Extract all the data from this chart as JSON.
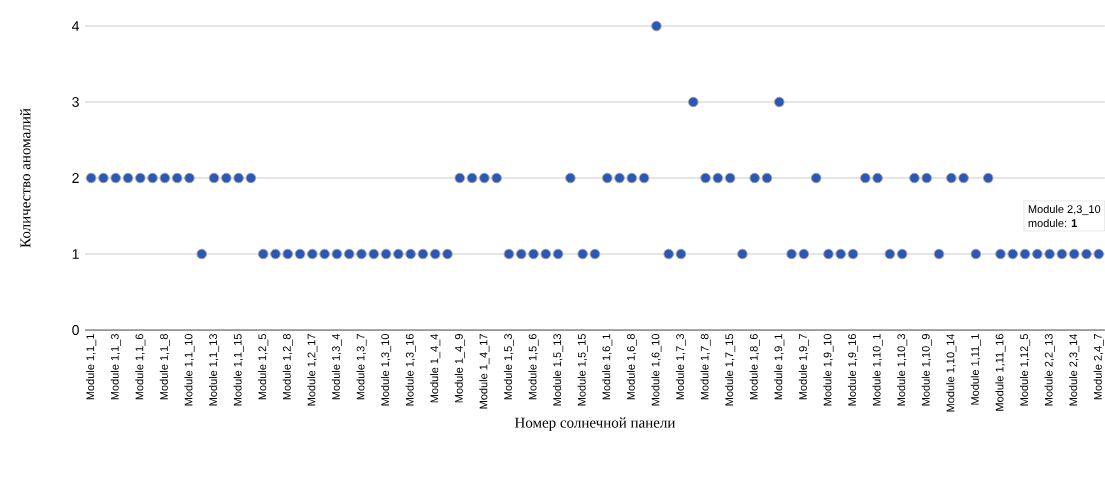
{
  "chart_data": {
    "type": "scatter",
    "xlabel": "Номер солнечной панели",
    "ylabel": "Количество аномалий",
    "categories": [
      "Module 1,1_1",
      null,
      "Module 1,1_3",
      null,
      "Module 1,1_6",
      null,
      "Module 1,1_8",
      null,
      "Module 1,1_10",
      null,
      "Module 1,1_13",
      null,
      "Module 1,1_15",
      null,
      "Module 1,2_5",
      null,
      "Module 1,2_8",
      null,
      "Module 1,2_17",
      null,
      "Module 1,3_4",
      null,
      "Module 1,3_7",
      null,
      "Module 1,3_10",
      null,
      "Module 1,3_16",
      null,
      "Module 1_4_4",
      null,
      "Module 1_4_9",
      null,
      "Module 1_4_17",
      null,
      "Module 1,5_3",
      null,
      "Module 1,5_6",
      null,
      "Module 1,5_13",
      null,
      "Module 1,5_15",
      null,
      "Module 1,6_1",
      null,
      "Module 1,6_8",
      null,
      "Module 1,6_10",
      null,
      "Module 1,7_3",
      null,
      "Module 1,7_8",
      null,
      "Module 1,7_15",
      null,
      "Module 1,8_6",
      null,
      "Module 1,9_1",
      null,
      "Module 1,9_7",
      null,
      "Module 1,9_10",
      null,
      "Module 1,9_16",
      null,
      "Module 1,10_1",
      null,
      "Module 1,10_3",
      null,
      "Module 1,10_9",
      null,
      "Module 1,10_14",
      null,
      "Module 1,11_1",
      null,
      "Module 1,11_16",
      null,
      "Module 1,12_5",
      null,
      "Module 2,2_13",
      null,
      "Module 2,3_14",
      null,
      "Module 2,4_7"
    ],
    "values": [
      2,
      2,
      2,
      2,
      2,
      2,
      2,
      2,
      2,
      1,
      2,
      2,
      2,
      2,
      1,
      1,
      1,
      1,
      1,
      1,
      1,
      1,
      1,
      1,
      1,
      1,
      1,
      1,
      1,
      1,
      2,
      2,
      2,
      2,
      1,
      1,
      1,
      1,
      1,
      2,
      1,
      1,
      2,
      2,
      2,
      2,
      4,
      1,
      1,
      3,
      2,
      2,
      2,
      1,
      2,
      2,
      3,
      1,
      1,
      2,
      1,
      1,
      1,
      2,
      2,
      1,
      1,
      2,
      2,
      1,
      2,
      2,
      1,
      2,
      1,
      1,
      1,
      1,
      1,
      1,
      1,
      1,
      1
    ],
    "color": "#2b58b6",
    "marker": "circle",
    "ylim": [
      0,
      4
    ],
    "yticks": [
      0,
      1,
      2,
      3,
      4
    ],
    "grid": "y",
    "annotations": [
      "Module 2,3_10",
      "module: **1**"
    ]
  }
}
